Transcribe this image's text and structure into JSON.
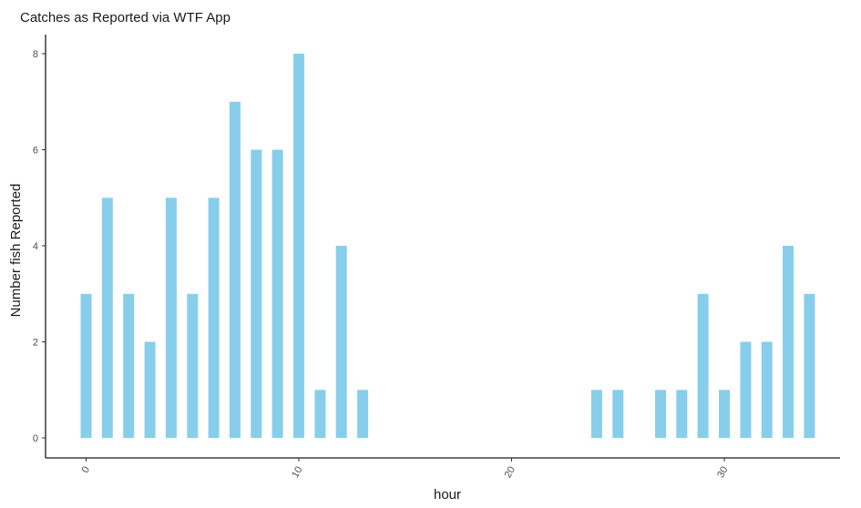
{
  "chart_data": {
    "type": "bar",
    "title": "Catches as Reported via WTF App",
    "xlabel": "hour",
    "ylabel": "Number fish Reported",
    "x": [
      0,
      1,
      2,
      3,
      4,
      5,
      6,
      7,
      8,
      9,
      10,
      11,
      12,
      13,
      24,
      25,
      27,
      28,
      29,
      30,
      31,
      32,
      33,
      34
    ],
    "values": [
      3,
      5,
      3,
      2,
      5,
      3,
      5,
      7,
      6,
      6,
      8,
      1,
      4,
      1,
      1,
      1,
      1,
      1,
      3,
      1,
      2,
      2,
      4,
      3
    ],
    "xlim": [
      -2,
      35.5
    ],
    "ylim": [
      0,
      8.4
    ],
    "xticks": [
      0,
      10,
      20,
      30
    ],
    "yticks": [
      0,
      2,
      4,
      6,
      8
    ],
    "bar_color": "#87ceeb",
    "grid": false,
    "legend": "none"
  }
}
